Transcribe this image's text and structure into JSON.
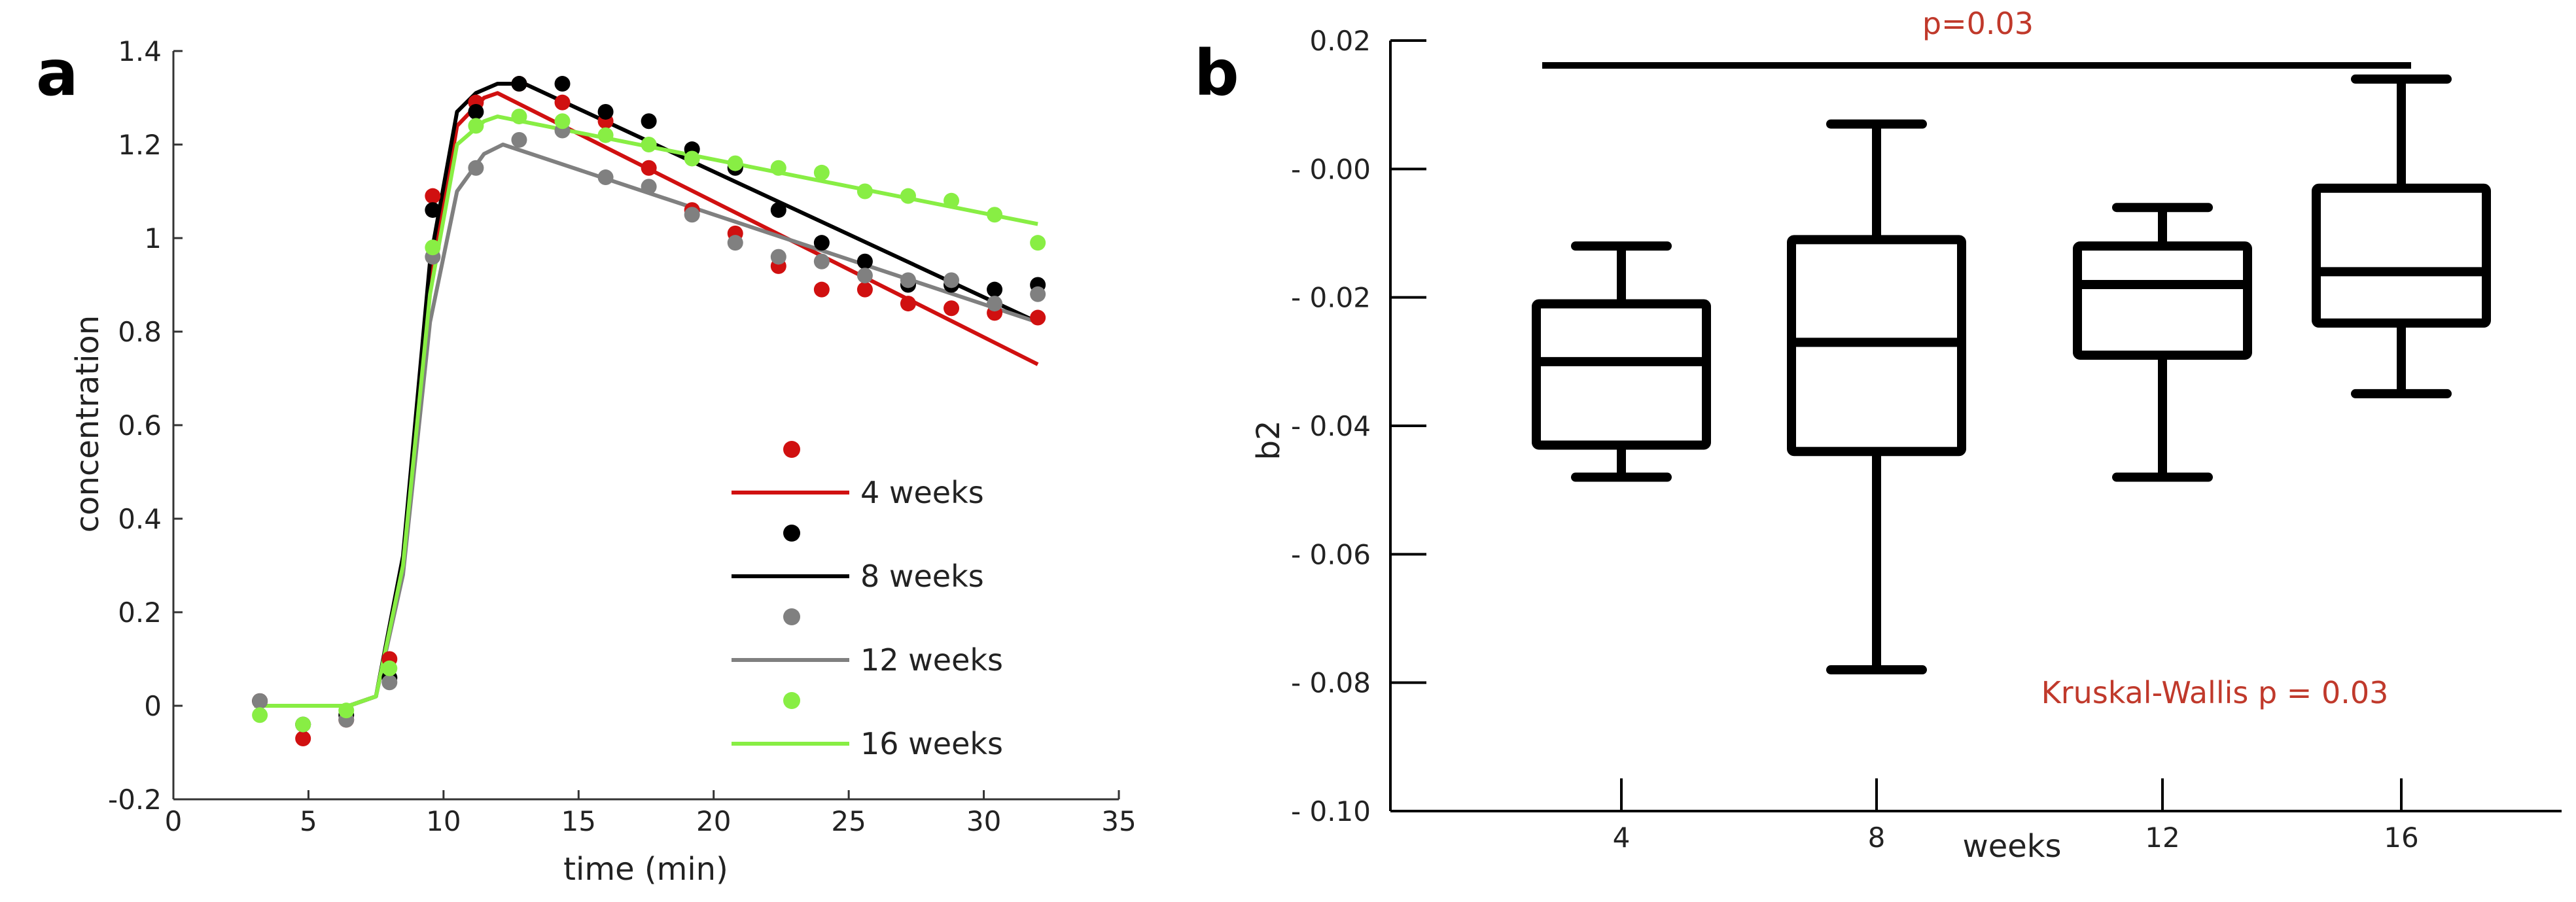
{
  "panels": [
    {
      "letter": "a"
    },
    {
      "letter": "b"
    }
  ],
  "chart_data": [
    {
      "type": "line",
      "panel": "a",
      "xlabel": "time (min)",
      "ylabel": "concentration",
      "xlim": [
        0,
        35
      ],
      "ylim": [
        -0.2,
        1.4
      ],
      "xticks": [
        0,
        5,
        10,
        15,
        20,
        25,
        30,
        35
      ],
      "xtick_labels": [
        "0",
        "5",
        "10",
        "15",
        "20",
        "25",
        "30",
        "35"
      ],
      "yticks": [
        -0.2,
        0,
        0.2,
        0.4,
        0.6,
        0.8,
        1,
        1.2,
        1.4
      ],
      "ytick_labels": [
        "-0.2",
        "0",
        "0.2",
        "0.4",
        "0.6",
        "0.8",
        "1",
        "1.2",
        "1.4"
      ],
      "legend_position": "bottom-right",
      "series": [
        {
          "name": "4 weeks",
          "color": "#d01010",
          "points": {
            "x": [
              3.2,
              4.8,
              6.4,
              8.0,
              9.6,
              11.2,
              12.8,
              14.4,
              16.0,
              17.6,
              19.2,
              20.8,
              22.4,
              24.0,
              25.6,
              27.2,
              28.8,
              30.4,
              32.0
            ],
            "y": [
              0.01,
              -0.07,
              -0.03,
              0.1,
              1.09,
              1.29,
              1.33,
              1.29,
              1.25,
              1.15,
              1.06,
              1.01,
              0.94,
              0.89,
              0.89,
              0.86,
              0.85,
              0.84,
              0.83
            ]
          },
          "fit": {
            "x": [
              3,
              6.5,
              7.5,
              8.5,
              9.5,
              10.5,
              11.5,
              12.0,
              32
            ],
            "y": [
              0,
              0,
              0.02,
              0.3,
              0.9,
              1.24,
              1.3,
              1.31,
              0.73
            ]
          }
        },
        {
          "name": "8 weeks",
          "color": "#000000",
          "points": {
            "x": [
              3.2,
              4.8,
              6.4,
              8.0,
              9.6,
              11.2,
              12.8,
              14.4,
              16.0,
              17.6,
              19.2,
              20.8,
              22.4,
              24.0,
              25.6,
              27.2,
              28.8,
              30.4,
              32.0
            ],
            "y": [
              0.01,
              -0.04,
              -0.02,
              0.06,
              1.06,
              1.27,
              1.33,
              1.33,
              1.27,
              1.25,
              1.19,
              1.15,
              1.06,
              0.99,
              0.95,
              0.9,
              0.9,
              0.89,
              0.9
            ]
          },
          "fit": {
            "x": [
              3,
              6.5,
              7.5,
              8.5,
              9.5,
              10.5,
              11.2,
              12.0,
              13.0,
              32
            ],
            "y": [
              0,
              0,
              0.02,
              0.32,
              0.95,
              1.27,
              1.31,
              1.33,
              1.33,
              0.82
            ]
          }
        },
        {
          "name": "12 weeks",
          "color": "#808080",
          "points": {
            "x": [
              3.2,
              4.8,
              6.4,
              8.0,
              9.6,
              11.2,
              12.8,
              14.4,
              16.0,
              17.6,
              19.2,
              20.8,
              22.4,
              24.0,
              25.6,
              27.2,
              28.8,
              30.4,
              32.0
            ],
            "y": [
              0.01,
              -0.04,
              -0.03,
              0.05,
              0.96,
              1.15,
              1.21,
              1.23,
              1.13,
              1.11,
              1.05,
              0.99,
              0.96,
              0.95,
              0.92,
              0.91,
              0.91,
              0.86,
              0.88
            ]
          },
          "fit": {
            "x": [
              3,
              6.5,
              7.5,
              8.5,
              9.5,
              10.5,
              11.5,
              12.2,
              32
            ],
            "y": [
              0,
              0,
              0.02,
              0.28,
              0.82,
              1.1,
              1.18,
              1.2,
              0.82
            ]
          }
        },
        {
          "name": "16 weeks",
          "color": "#88ee44",
          "points": {
            "x": [
              3.2,
              4.8,
              6.4,
              8.0,
              9.6,
              11.2,
              12.8,
              14.4,
              16.0,
              17.6,
              19.2,
              20.8,
              22.4,
              24.0,
              25.6,
              27.2,
              28.8,
              30.4,
              32.0
            ],
            "y": [
              -0.02,
              -0.04,
              -0.01,
              0.08,
              0.98,
              1.24,
              1.26,
              1.25,
              1.22,
              1.2,
              1.17,
              1.16,
              1.15,
              1.14,
              1.1,
              1.09,
              1.08,
              1.05,
              0.99
            ]
          },
          "fit": {
            "x": [
              3,
              6.5,
              7.5,
              8.5,
              9.5,
              10.5,
              11.5,
              12.0,
              32
            ],
            "y": [
              0,
              0,
              0.02,
              0.3,
              0.88,
              1.2,
              1.25,
              1.26,
              1.03
            ]
          }
        }
      ]
    },
    {
      "type": "box",
      "panel": "b",
      "xlabel": "weeks",
      "ylabel": "b2",
      "categories": [
        "4",
        "8",
        "12",
        "16"
      ],
      "ylim": [
        -0.1,
        0.02
      ],
      "yticks": [
        0.02,
        0.0,
        -0.02,
        -0.04,
        -0.06,
        -0.08,
        -0.1
      ],
      "ytick_labels": [
        "0.02",
        "- 0.00",
        "- 0.02",
        "- 0.04",
        "- 0.06",
        "- 0.08",
        "- 0.10"
      ],
      "boxes": [
        {
          "label": "4",
          "whisker_low": -0.048,
          "q1": -0.043,
          "median": -0.03,
          "q3": -0.021,
          "whisker_high": -0.012
        },
        {
          "label": "8",
          "whisker_low": -0.078,
          "q1": -0.044,
          "median": -0.027,
          "q3": -0.011,
          "whisker_high": 0.007
        },
        {
          "label": "12",
          "whisker_low": -0.048,
          "q1": -0.029,
          "median": -0.018,
          "q3": -0.012,
          "whisker_high": -0.006
        },
        {
          "label": "16",
          "whisker_low": -0.035,
          "q1": -0.024,
          "median": -0.016,
          "q3": -0.003,
          "whisker_high": 0.014
        }
      ],
      "significance_bar": {
        "text": "p=0.03",
        "from": "4",
        "to": "16"
      },
      "annotation": "Kruskal-Wallis p = 0.03",
      "annotation_color": "#c0392b"
    }
  ]
}
